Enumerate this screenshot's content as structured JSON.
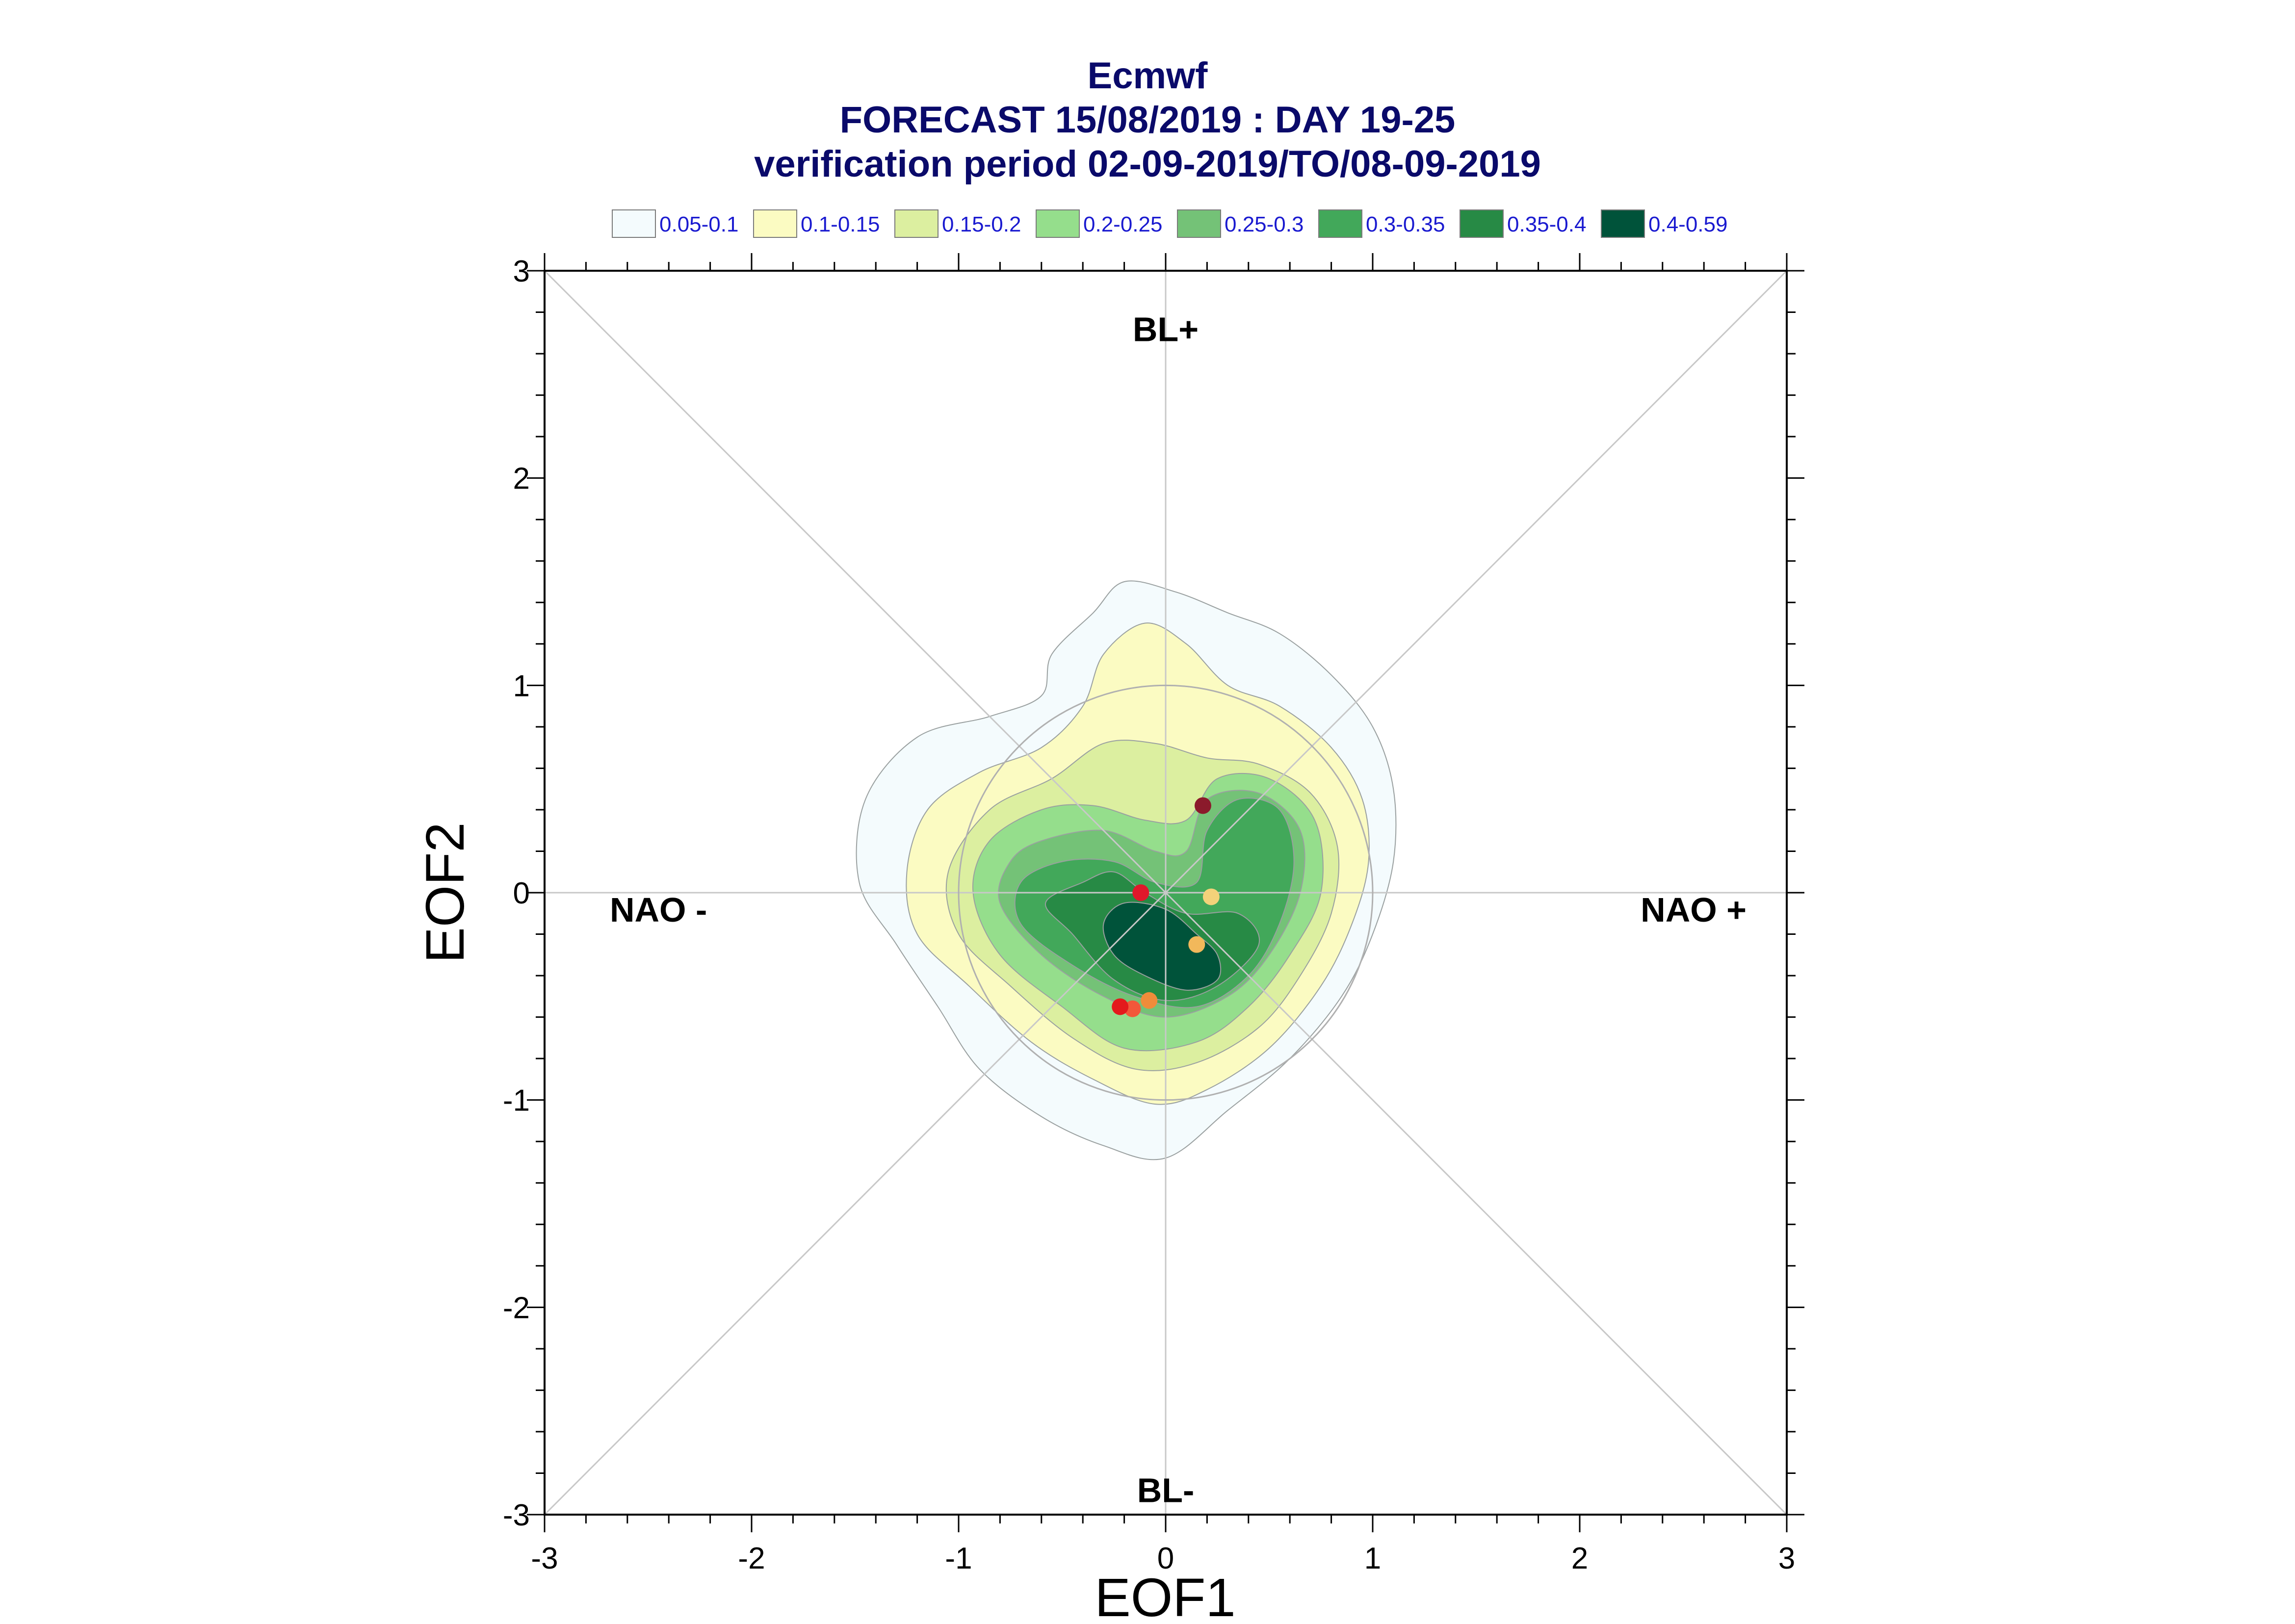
{
  "chart_data": {
    "type": "contour-scatter",
    "title": "Ecmwf",
    "subtitle": "FORECAST 15/08/2019 : DAY 19-25",
    "subtitle2": "verification period 02-09-2019/TO/08-09-2019",
    "xlabel": "EOF1",
    "ylabel": "EOF2",
    "xlim": [
      -3,
      3
    ],
    "ylim": [
      -3,
      3
    ],
    "xticks": [
      -3,
      -2,
      -1,
      0,
      1,
      2,
      3
    ],
    "yticks": [
      -3,
      -2,
      -1,
      0,
      1,
      2,
      3
    ],
    "grid": false,
    "legend_position": "top",
    "legend": [
      {
        "label": "0.05-0.1",
        "color": "#f4fbfd"
      },
      {
        "label": "0.1-0.15",
        "color": "#fbfbc2"
      },
      {
        "label": "0.15-0.2",
        "color": "#dcefa0"
      },
      {
        "label": "0.2-0.25",
        "color": "#95de8c"
      },
      {
        "label": "0.25-0.3",
        "color": "#74c277"
      },
      {
        "label": "0.3-0.35",
        "color": "#42a85a"
      },
      {
        "label": "0.35-0.4",
        "color": "#278a45"
      },
      {
        "label": "0.4-0.59",
        "color": "#00533a"
      }
    ],
    "regions": [
      {
        "label": "BL+",
        "x": 0,
        "y": 2.72
      },
      {
        "label": "BL-",
        "x": 0,
        "y": -2.88
      },
      {
        "label": "NAO -",
        "x": -2.45,
        "y": -0.08
      },
      {
        "label": "NAO +",
        "x": 2.55,
        "y": -0.08
      }
    ],
    "reference_circle_radius": 1,
    "contours": [
      {
        "level": "0.05-0.1",
        "points": [
          [
            -0.35,
            1.35
          ],
          [
            -0.2,
            1.5
          ],
          [
            0.05,
            1.45
          ],
          [
            0.3,
            1.35
          ],
          [
            0.55,
            1.25
          ],
          [
            0.8,
            1.05
          ],
          [
            1.0,
            0.8
          ],
          [
            1.1,
            0.5
          ],
          [
            1.1,
            0.15
          ],
          [
            1.0,
            -0.2
          ],
          [
            0.85,
            -0.5
          ],
          [
            0.6,
            -0.8
          ],
          [
            0.3,
            -1.05
          ],
          [
            0.0,
            -1.28
          ],
          [
            -0.3,
            -1.22
          ],
          [
            -0.6,
            -1.08
          ],
          [
            -0.9,
            -0.85
          ],
          [
            -1.1,
            -0.55
          ],
          [
            -1.3,
            -0.25
          ],
          [
            -1.48,
            0.05
          ],
          [
            -1.45,
            0.45
          ],
          [
            -1.2,
            0.75
          ],
          [
            -0.85,
            0.85
          ],
          [
            -0.6,
            0.95
          ],
          [
            -0.55,
            1.15
          ]
        ]
      },
      {
        "level": "0.1-0.15",
        "points": [
          [
            -0.3,
            1.15
          ],
          [
            -0.1,
            1.3
          ],
          [
            0.1,
            1.2
          ],
          [
            0.3,
            1.0
          ],
          [
            0.55,
            0.9
          ],
          [
            0.8,
            0.7
          ],
          [
            0.95,
            0.45
          ],
          [
            0.98,
            0.15
          ],
          [
            0.9,
            -0.15
          ],
          [
            0.75,
            -0.45
          ],
          [
            0.5,
            -0.75
          ],
          [
            0.2,
            -0.95
          ],
          [
            -0.05,
            -1.02
          ],
          [
            -0.35,
            -0.9
          ],
          [
            -0.65,
            -0.72
          ],
          [
            -0.95,
            -0.45
          ],
          [
            -1.2,
            -0.2
          ],
          [
            -1.25,
            0.1
          ],
          [
            -1.15,
            0.4
          ],
          [
            -0.9,
            0.58
          ],
          [
            -0.6,
            0.7
          ],
          [
            -0.4,
            0.9
          ]
        ]
      },
      {
        "level": "0.15-0.2",
        "points": [
          [
            -0.55,
            0.55
          ],
          [
            -0.3,
            0.72
          ],
          [
            -0.05,
            0.72
          ],
          [
            0.2,
            0.65
          ],
          [
            0.45,
            0.62
          ],
          [
            0.7,
            0.48
          ],
          [
            0.83,
            0.22
          ],
          [
            0.8,
            -0.1
          ],
          [
            0.65,
            -0.4
          ],
          [
            0.45,
            -0.65
          ],
          [
            0.15,
            -0.82
          ],
          [
            -0.15,
            -0.85
          ],
          [
            -0.45,
            -0.7
          ],
          [
            -0.75,
            -0.45
          ],
          [
            -1.0,
            -0.2
          ],
          [
            -1.05,
            0.1
          ],
          [
            -0.85,
            0.4
          ]
        ]
      },
      {
        "level": "0.2-0.25",
        "points": [
          [
            -0.6,
            0.4
          ],
          [
            -0.35,
            0.42
          ],
          [
            -0.1,
            0.35
          ],
          [
            0.1,
            0.35
          ],
          [
            0.25,
            0.55
          ],
          [
            0.5,
            0.55
          ],
          [
            0.72,
            0.35
          ],
          [
            0.75,
            0.0
          ],
          [
            0.6,
            -0.3
          ],
          [
            0.4,
            -0.55
          ],
          [
            0.15,
            -0.72
          ],
          [
            -0.2,
            -0.75
          ],
          [
            -0.5,
            -0.55
          ],
          [
            -0.8,
            -0.3
          ],
          [
            -0.93,
            0.0
          ],
          [
            -0.85,
            0.25
          ]
        ]
      },
      {
        "level": "0.25-0.3",
        "points": [
          [
            -0.6,
            0.25
          ],
          [
            -0.3,
            0.3
          ],
          [
            -0.05,
            0.2
          ],
          [
            0.1,
            0.2
          ],
          [
            0.2,
            0.45
          ],
          [
            0.45,
            0.48
          ],
          [
            0.65,
            0.3
          ],
          [
            0.65,
            0.0
          ],
          [
            0.5,
            -0.3
          ],
          [
            0.3,
            -0.5
          ],
          [
            0.0,
            -0.6
          ],
          [
            -0.3,
            -0.5
          ],
          [
            -0.6,
            -0.3
          ],
          [
            -0.8,
            -0.05
          ],
          [
            -0.75,
            0.15
          ]
        ]
      },
      {
        "level": "0.3-0.35",
        "points": [
          [
            -0.5,
            0.15
          ],
          [
            -0.25,
            0.15
          ],
          [
            -0.05,
            0.05
          ],
          [
            0.15,
            0.05
          ],
          [
            0.2,
            0.3
          ],
          [
            0.35,
            0.45
          ],
          [
            0.55,
            0.4
          ],
          [
            0.62,
            0.15
          ],
          [
            0.55,
            -0.15
          ],
          [
            0.4,
            -0.4
          ],
          [
            0.15,
            -0.55
          ],
          [
            -0.15,
            -0.5
          ],
          [
            -0.45,
            -0.35
          ],
          [
            -0.7,
            -0.15
          ],
          [
            -0.7,
            0.05
          ]
        ]
      },
      {
        "level": "0.35-0.4",
        "points": [
          [
            -0.4,
            0.05
          ],
          [
            -0.25,
            0.1
          ],
          [
            -0.1,
            0.0
          ],
          [
            0.1,
            -0.1
          ],
          [
            0.35,
            -0.1
          ],
          [
            0.45,
            -0.25
          ],
          [
            0.25,
            -0.45
          ],
          [
            0.0,
            -0.52
          ],
          [
            -0.25,
            -0.42
          ],
          [
            -0.45,
            -0.2
          ],
          [
            -0.58,
            -0.05
          ]
        ]
      },
      {
        "level": "0.4-0.59",
        "points": [
          [
            -0.2,
            -0.05
          ],
          [
            0.0,
            -0.08
          ],
          [
            0.15,
            -0.2
          ],
          [
            0.25,
            -0.3
          ],
          [
            0.25,
            -0.42
          ],
          [
            0.1,
            -0.47
          ],
          [
            -0.1,
            -0.4
          ],
          [
            -0.25,
            -0.3
          ],
          [
            -0.3,
            -0.15
          ]
        ]
      }
    ],
    "points": [
      {
        "x": 0.18,
        "y": 0.42,
        "color": "#8b1a2b"
      },
      {
        "x": -0.12,
        "y": 0.0,
        "color": "#e0182b"
      },
      {
        "x": 0.22,
        "y": -0.02,
        "color": "#f3d27a"
      },
      {
        "x": 0.15,
        "y": -0.25,
        "color": "#f2b85b"
      },
      {
        "x": -0.08,
        "y": -0.52,
        "color": "#f08c3a"
      },
      {
        "x": -0.16,
        "y": -0.56,
        "color": "#f2583a"
      },
      {
        "x": -0.22,
        "y": -0.55,
        "color": "#e31a1c"
      }
    ]
  }
}
